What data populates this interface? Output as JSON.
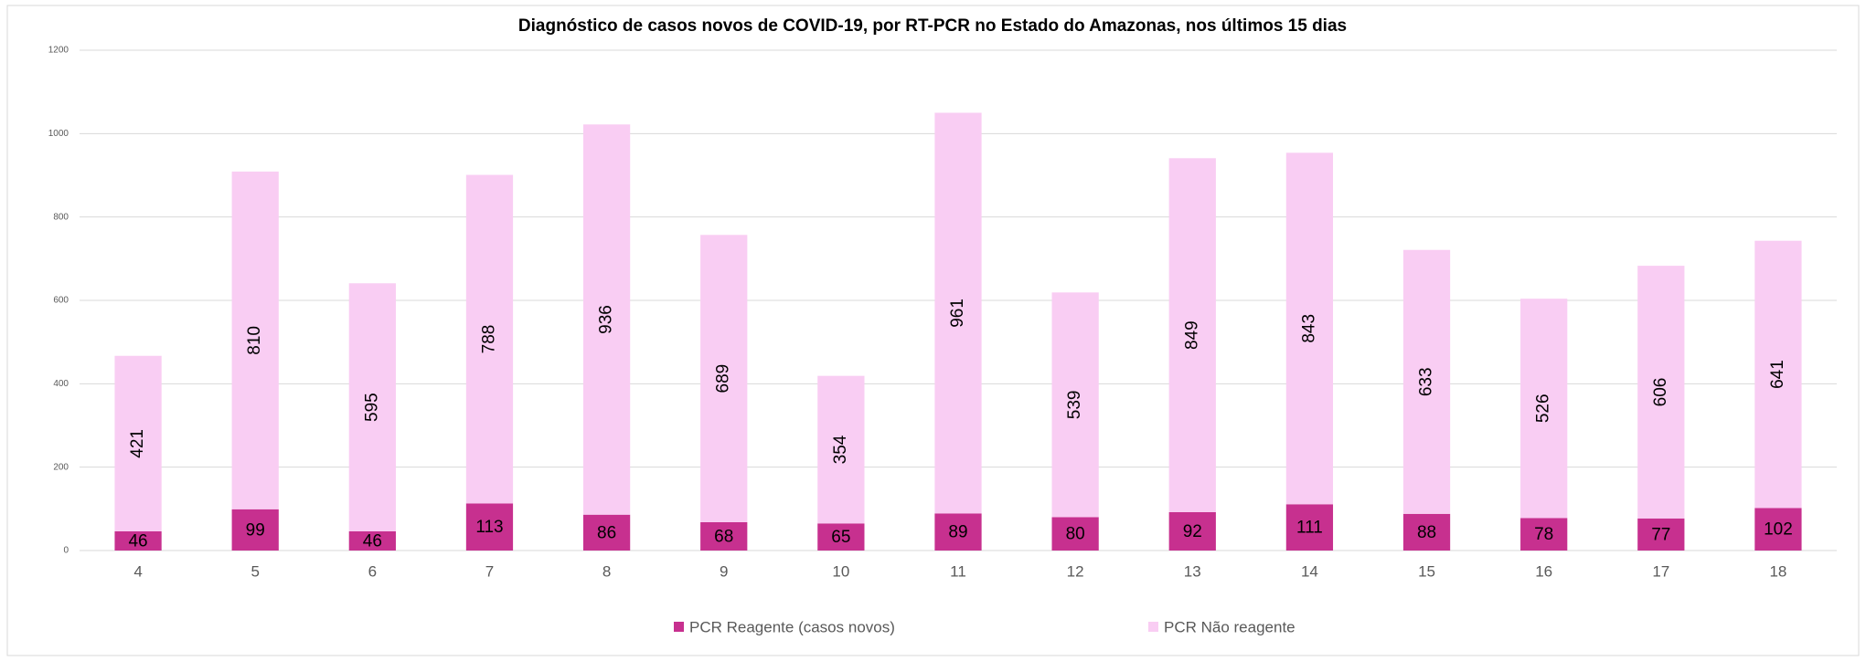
{
  "chart_data": {
    "type": "stacked_bar",
    "title": "Diagnóstico de casos novos de COVID-19, por RT-PCR no Estado do Amazonas, nos últimos 15 dias",
    "categories": [
      "4",
      "5",
      "6",
      "7",
      "8",
      "9",
      "10",
      "11",
      "12",
      "13",
      "14",
      "15",
      "16",
      "17",
      "18"
    ],
    "series": [
      {
        "name": "PCR Reagente (casos novos)",
        "color": "#c7308f",
        "values": [
          46,
          99,
          46,
          113,
          86,
          68,
          65,
          89,
          80,
          92,
          111,
          88,
          78,
          77,
          102
        ]
      },
      {
        "name": "PCR Não reagente",
        "color": "#f9cdf3",
        "values": [
          421,
          810,
          595,
          788,
          936,
          689,
          354,
          961,
          539,
          849,
          843,
          633,
          526,
          606,
          641
        ]
      }
    ],
    "ylim": [
      0,
      1200
    ],
    "yticks": [
      0,
      200,
      400,
      600,
      800,
      1000,
      1200
    ],
    "grid": true,
    "legend": "bottom"
  }
}
